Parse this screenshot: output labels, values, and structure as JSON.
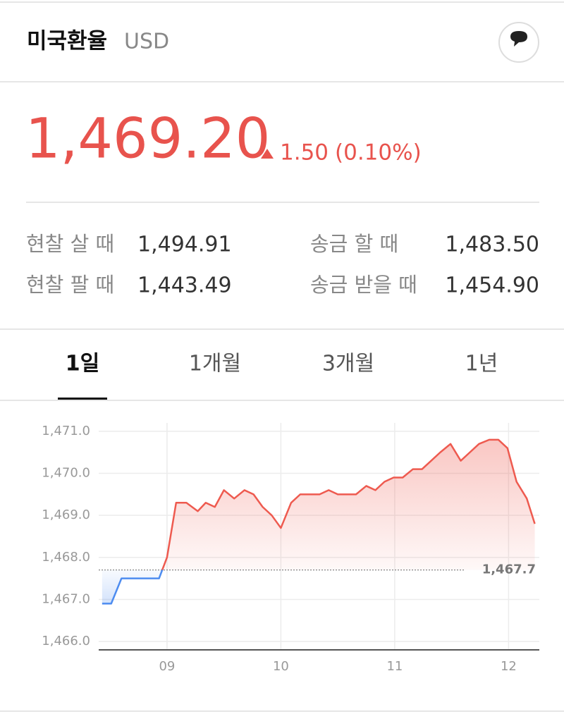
{
  "header": {
    "title": "미국환율",
    "code": "USD"
  },
  "price": {
    "value": "1,469.20",
    "change": "1.50",
    "change_percent": "(0.10%)"
  },
  "rates": [
    {
      "label": "현찰 살 때",
      "value": "1,494.91"
    },
    {
      "label": "송금 할 때",
      "value": "1,483.50"
    },
    {
      "label": "현찰 팔 때",
      "value": "1,443.49"
    },
    {
      "label": "송금 받을 때",
      "value": "1,454.90"
    }
  ],
  "tabs": [
    "1일",
    "1개월",
    "3개월",
    "1년"
  ],
  "active_tab": 0,
  "chart_data": {
    "type": "line",
    "x": [
      8.43,
      8.51,
      8.6,
      8.93,
      9.0,
      9.08,
      9.17,
      9.27,
      9.34,
      9.42,
      9.5,
      9.59,
      9.68,
      9.76,
      9.84,
      9.92,
      10.0,
      10.09,
      10.17,
      10.34,
      10.42,
      10.5,
      10.66,
      10.75,
      10.83,
      10.91,
      10.99,
      11.07,
      11.16,
      11.24,
      11.32,
      11.4,
      11.49,
      11.58,
      11.66,
      11.74,
      11.83,
      11.91,
      11.99,
      12.07,
      12.16,
      12.23
    ],
    "values": [
      1466.9,
      1466.9,
      1467.5,
      1467.5,
      1468.0,
      1469.3,
      1469.3,
      1469.1,
      1469.3,
      1469.2,
      1469.6,
      1469.4,
      1469.6,
      1469.5,
      1469.2,
      1469.0,
      1468.7,
      1469.3,
      1469.5,
      1469.5,
      1469.6,
      1469.5,
      1469.5,
      1469.7,
      1469.6,
      1469.8,
      1469.9,
      1469.9,
      1470.1,
      1470.1,
      1470.3,
      1470.5,
      1470.7,
      1470.3,
      1470.5,
      1470.7,
      1470.8,
      1470.8,
      1470.6,
      1469.8,
      1469.4,
      1468.8
    ],
    "color": "#ee5a4f",
    "below_color": "#4d8cf0",
    "reference": {
      "value": 1467.7,
      "label": "1,467.7"
    },
    "xlim": [
      8.4,
      12.27
    ],
    "xticks": [
      {
        "value": 9,
        "label": "09"
      },
      10,
      11,
      12
    ],
    "ylim": [
      1465.8,
      1471.2
    ],
    "yticks": [
      {
        "value": 1466,
        "label": "1,466.0"
      },
      {
        "value": 1467,
        "label": "1,467.0"
      },
      {
        "value": 1468,
        "label": "1,468.0"
      },
      {
        "value": 1469,
        "label": "1,469.0"
      },
      {
        "value": 1470,
        "label": "1,470.0"
      },
      {
        "value": 1471,
        "label": "1,471.0"
      }
    ],
    "grid": true
  }
}
